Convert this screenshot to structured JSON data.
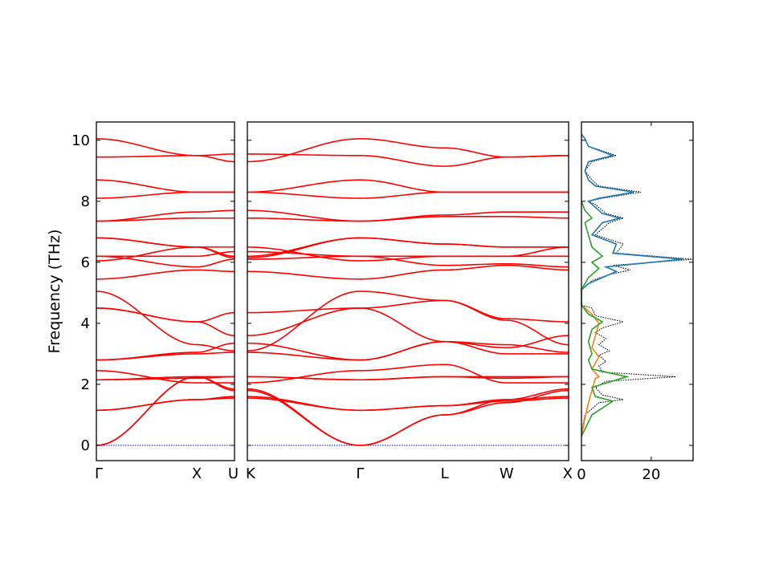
{
  "colors": {
    "bands": "#ff0000",
    "zero_line": "#0000ff",
    "total": "#000000",
    "pdos1": "#1f77b4",
    "pdos2": "#ff7f0e",
    "pdos3": "#2ca02c"
  },
  "chart_data": [
    {
      "type": "line",
      "title": "",
      "ylabel": "Frequency (THz)",
      "ylim": [
        -0.5,
        10.6
      ],
      "yticks": [
        0,
        2,
        4,
        6,
        8,
        10
      ],
      "xticks": [
        "Γ",
        "X",
        "U"
      ],
      "tick_positions": [
        0,
        0.8,
        1.1
      ],
      "xlim": [
        0,
        1.1
      ],
      "series_y_at_ticks": [
        [
          0,
          2.25,
          1.8
        ],
        [
          0,
          2.25,
          1.85
        ],
        [
          1.15,
          1.5,
          1.55
        ],
        [
          1.15,
          1.5,
          1.6
        ],
        [
          2.15,
          2.2,
          2.25
        ],
        [
          2.15,
          2.25,
          2.25
        ],
        [
          2.45,
          2.05,
          2.05
        ],
        [
          2.8,
          3.05,
          3.35
        ],
        [
          2.8,
          3.0,
          3.05
        ],
        [
          4.5,
          4.05,
          3.6
        ],
        [
          4.5,
          4.05,
          4.35
        ],
        [
          5.05,
          3.3,
          3.1
        ],
        [
          5.45,
          5.75,
          5.7
        ],
        [
          6.2,
          5.85,
          6.1
        ],
        [
          6.2,
          6.2,
          6.35
        ],
        [
          6.05,
          6.5,
          6.5
        ],
        [
          6.8,
          6.5,
          6.15
        ],
        [
          6.8,
          6.5,
          6.2
        ],
        [
          7.35,
          7.65,
          7.7
        ],
        [
          7.35,
          7.45,
          7.45
        ],
        [
          8.1,
          8.3,
          8.3
        ],
        [
          8.7,
          8.3,
          8.3
        ],
        [
          9.45,
          9.5,
          9.55
        ],
        [
          10.05,
          9.5,
          9.3
        ]
      ]
    },
    {
      "type": "line",
      "title": "",
      "ylim": [
        -0.5,
        10.6
      ],
      "xticks": [
        "K",
        "Γ",
        "L",
        "W",
        "X"
      ],
      "tick_positions": [
        0,
        1,
        1.75,
        2.3,
        2.85
      ],
      "xlim": [
        0,
        2.85
      ],
      "series_y_at_ticks": [
        [
          1.8,
          0,
          1.0,
          1.4,
          1.8
        ],
        [
          1.85,
          0,
          1.0,
          1.5,
          1.85
        ],
        [
          1.55,
          1.15,
          1.3,
          1.45,
          1.55
        ],
        [
          1.6,
          1.15,
          1.3,
          1.5,
          1.6
        ],
        [
          2.25,
          2.15,
          2.25,
          2.2,
          2.25
        ],
        [
          2.25,
          2.15,
          2.25,
          2.25,
          2.25
        ],
        [
          2.05,
          2.45,
          2.65,
          2.05,
          2.05
        ],
        [
          3.35,
          2.8,
          3.4,
          3.3,
          3.05
        ],
        [
          3.05,
          2.8,
          3.4,
          3.0,
          3.0
        ],
        [
          3.6,
          4.5,
          3.4,
          3.2,
          3.6
        ],
        [
          4.35,
          4.5,
          4.75,
          4.15,
          4.05
        ],
        [
          3.1,
          5.05,
          4.75,
          4.1,
          3.3
        ],
        [
          5.7,
          5.45,
          5.75,
          5.9,
          5.75
        ],
        [
          6.1,
          6.2,
          5.9,
          5.95,
          5.85
        ],
        [
          6.35,
          6.2,
          6.2,
          6.2,
          6.2
        ],
        [
          6.5,
          6.05,
          6.2,
          6.2,
          6.5
        ],
        [
          6.15,
          6.8,
          6.6,
          6.5,
          6.5
        ],
        [
          6.2,
          6.8,
          6.6,
          6.5,
          6.5
        ],
        [
          7.7,
          7.35,
          7.55,
          7.65,
          7.65
        ],
        [
          7.45,
          7.35,
          7.5,
          7.5,
          7.45
        ],
        [
          8.3,
          8.1,
          8.3,
          8.3,
          8.3
        ],
        [
          8.3,
          8.7,
          8.3,
          8.3,
          8.3
        ],
        [
          9.55,
          9.5,
          9.15,
          9.45,
          9.5
        ],
        [
          9.3,
          10.05,
          9.75,
          9.45,
          9.5
        ]
      ]
    },
    {
      "type": "line",
      "title": "",
      "xticks": [
        "0",
        "20"
      ],
      "xtick_values": [
        0,
        20
      ],
      "xlim": [
        0,
        32
      ],
      "ylim": [
        -0.5,
        10.6
      ],
      "series": [
        {
          "name": "",
          "color_key": "total",
          "style": "dotted",
          "points": [
            [
              0,
              0.4
            ],
            [
              1,
              1.0
            ],
            [
              5,
              1.4
            ],
            [
              12,
              1.5
            ],
            [
              6,
              1.65
            ],
            [
              4,
              1.9
            ],
            [
              7,
              2.1
            ],
            [
              27,
              2.25
            ],
            [
              6,
              2.4
            ],
            [
              5,
              2.6
            ],
            [
              7,
              2.75
            ],
            [
              5,
              2.95
            ],
            [
              8,
              3.1
            ],
            [
              5,
              3.3
            ],
            [
              7,
              3.5
            ],
            [
              4,
              3.7
            ],
            [
              6,
              3.85
            ],
            [
              12,
              4.05
            ],
            [
              4,
              4.25
            ],
            [
              3,
              4.5
            ],
            [
              0,
              4.6
            ],
            [
              0,
              5.1
            ],
            [
              3,
              5.4
            ],
            [
              8,
              5.6
            ],
            [
              14,
              5.75
            ],
            [
              9,
              5.9
            ],
            [
              32,
              6.1
            ],
            [
              10,
              6.3
            ],
            [
              12,
              6.6
            ],
            [
              4,
              6.9
            ],
            [
              8,
              7.3
            ],
            [
              12,
              7.45
            ],
            [
              7,
              7.6
            ],
            [
              4,
              7.9
            ],
            [
              2,
              8.0
            ],
            [
              6,
              8.1
            ],
            [
              17,
              8.3
            ],
            [
              5,
              8.5
            ],
            [
              3,
              8.7
            ],
            [
              1,
              9.0
            ],
            [
              3,
              9.3
            ],
            [
              10,
              9.5
            ],
            [
              2,
              9.8
            ],
            [
              1,
              10.05
            ],
            [
              0,
              10.2
            ]
          ]
        },
        {
          "name": "",
          "color_key": "pdos1",
          "points": [
            [
              0,
              5.1
            ],
            [
              2,
              5.3
            ],
            [
              6,
              5.5
            ],
            [
              10,
              5.7
            ],
            [
              7,
              5.85
            ],
            [
              29,
              6.1
            ],
            [
              9,
              6.3
            ],
            [
              10,
              6.6
            ],
            [
              3,
              6.9
            ],
            [
              6,
              7.3
            ],
            [
              11,
              7.45
            ],
            [
              6,
              7.6
            ],
            [
              3,
              7.9
            ],
            [
              2,
              8.0
            ],
            [
              5,
              8.1
            ],
            [
              15,
              8.3
            ],
            [
              4,
              8.5
            ],
            [
              2,
              8.7
            ],
            [
              1,
              9.0
            ],
            [
              2,
              9.3
            ],
            [
              9,
              9.5
            ],
            [
              2,
              9.8
            ],
            [
              1,
              10.05
            ],
            [
              0,
              10.2
            ]
          ]
        },
        {
          "name": "",
          "color_key": "pdos2",
          "points": [
            [
              0,
              0.3
            ],
            [
              1,
              0.9
            ],
            [
              2,
              1.4
            ],
            [
              3,
              1.8
            ],
            [
              4,
              2.2
            ],
            [
              5,
              2.25
            ],
            [
              3,
              2.5
            ],
            [
              5,
              2.9
            ],
            [
              3,
              3.2
            ],
            [
              4,
              3.6
            ],
            [
              5,
              4.0
            ],
            [
              3,
              4.3
            ],
            [
              1,
              4.5
            ],
            [
              0,
              4.6
            ]
          ]
        },
        {
          "name": "",
          "color_key": "pdos3",
          "points": [
            [
              0,
              0.3
            ],
            [
              3,
              1.0
            ],
            [
              9,
              1.45
            ],
            [
              4,
              1.6
            ],
            [
              3,
              1.9
            ],
            [
              13,
              2.25
            ],
            [
              3,
              2.5
            ],
            [
              2,
              2.8
            ],
            [
              3,
              3.0
            ],
            [
              2,
              3.4
            ],
            [
              3,
              3.8
            ],
            [
              6,
              4.05
            ],
            [
              2,
              4.3
            ],
            [
              0,
              4.6
            ],
            [
              0,
              5.1
            ],
            [
              2,
              5.5
            ],
            [
              5,
              5.8
            ],
            [
              3,
              6.0
            ],
            [
              6,
              6.2
            ],
            [
              3,
              6.5
            ],
            [
              2,
              6.9
            ],
            [
              1,
              7.3
            ],
            [
              3,
              7.45
            ],
            [
              1,
              7.7
            ],
            [
              0,
              8.0
            ]
          ]
        }
      ]
    }
  ]
}
